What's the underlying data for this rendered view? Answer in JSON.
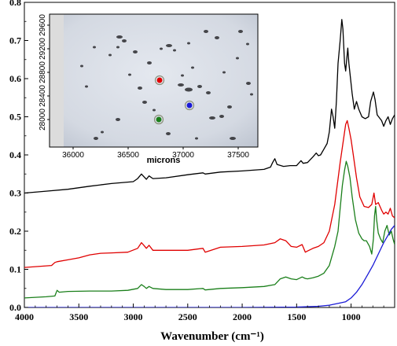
{
  "chart_data": [
    {
      "type": "line",
      "xlabel": "Wavenumber (cm⁻¹)",
      "xlim": [
        4000,
        600
      ],
      "ylim": [
        0.0,
        0.8
      ],
      "x_ticks": [
        4000,
        3500,
        3000,
        2500,
        2000,
        1500,
        1000
      ],
      "x_tick_labels": [
        "4000",
        "3500",
        "3000",
        "2500",
        "2000",
        "1500",
        "1000"
      ],
      "y_ticks": [
        0.0,
        0.1,
        0.2,
        0.3,
        0.4,
        0.5,
        0.6,
        0.7,
        0.8
      ],
      "y_tick_labels": [
        "0.0",
        "0.1",
        "0.2",
        "0.3",
        "0.4",
        "0.5",
        "0.6",
        "0.7",
        "0.8"
      ],
      "grid": false,
      "series": [
        {
          "color": "#000000",
          "points": [
            [
              4000,
              0.3
            ],
            [
              3800,
              0.305
            ],
            [
              3600,
              0.31
            ],
            [
              3400,
              0.318
            ],
            [
              3200,
              0.325
            ],
            [
              3000,
              0.33
            ],
            [
              2960,
              0.338
            ],
            [
              2925,
              0.35
            ],
            [
              2900,
              0.342
            ],
            [
              2880,
              0.336
            ],
            [
              2855,
              0.345
            ],
            [
              2820,
              0.338
            ],
            [
              2700,
              0.34
            ],
            [
              2500,
              0.348
            ],
            [
              2360,
              0.353
            ],
            [
              2340,
              0.35
            ],
            [
              2200,
              0.355
            ],
            [
              2000,
              0.358
            ],
            [
              1800,
              0.362
            ],
            [
              1740,
              0.368
            ],
            [
              1720,
              0.38
            ],
            [
              1700,
              0.39
            ],
            [
              1680,
              0.375
            ],
            [
              1620,
              0.37
            ],
            [
              1560,
              0.372
            ],
            [
              1500,
              0.372
            ],
            [
              1460,
              0.385
            ],
            [
              1440,
              0.378
            ],
            [
              1400,
              0.38
            ],
            [
              1350,
              0.395
            ],
            [
              1320,
              0.405
            ],
            [
              1300,
              0.398
            ],
            [
              1280,
              0.4
            ],
            [
              1250,
              0.415
            ],
            [
              1220,
              0.43
            ],
            [
              1200,
              0.46
            ],
            [
              1180,
              0.52
            ],
            [
              1165,
              0.5
            ],
            [
              1150,
              0.47
            ],
            [
              1135,
              0.54
            ],
            [
              1120,
              0.64
            ],
            [
              1100,
              0.7
            ],
            [
              1085,
              0.755
            ],
            [
              1075,
              0.73
            ],
            [
              1060,
              0.64
            ],
            [
              1050,
              0.62
            ],
            [
              1040,
              0.65
            ],
            [
              1030,
              0.68
            ],
            [
              1020,
              0.64
            ],
            [
              1005,
              0.6
            ],
            [
              990,
              0.56
            ],
            [
              970,
              0.52
            ],
            [
              950,
              0.54
            ],
            [
              930,
              0.52
            ],
            [
              900,
              0.5
            ],
            [
              870,
              0.495
            ],
            [
              840,
              0.5
            ],
            [
              820,
              0.54
            ],
            [
              795,
              0.565
            ],
            [
              780,
              0.545
            ],
            [
              760,
              0.505
            ],
            [
              720,
              0.49
            ],
            [
              700,
              0.475
            ],
            [
              680,
              0.49
            ],
            [
              660,
              0.5
            ],
            [
              640,
              0.48
            ],
            [
              620,
              0.495
            ],
            [
              600,
              0.505
            ]
          ]
        },
        {
          "color": "#e00000",
          "points": [
            [
              4000,
              0.105
            ],
            [
              3750,
              0.11
            ],
            [
              3720,
              0.118
            ],
            [
              3700,
              0.12
            ],
            [
              3600,
              0.125
            ],
            [
              3500,
              0.13
            ],
            [
              3400,
              0.138
            ],
            [
              3300,
              0.142
            ],
            [
              3200,
              0.143
            ],
            [
              3050,
              0.145
            ],
            [
              2960,
              0.155
            ],
            [
              2925,
              0.17
            ],
            [
              2900,
              0.162
            ],
            [
              2880,
              0.155
            ],
            [
              2855,
              0.163
            ],
            [
              2820,
              0.15
            ],
            [
              2700,
              0.15
            ],
            [
              2500,
              0.15
            ],
            [
              2360,
              0.155
            ],
            [
              2340,
              0.145
            ],
            [
              2200,
              0.158
            ],
            [
              2000,
              0.16
            ],
            [
              1800,
              0.164
            ],
            [
              1700,
              0.17
            ],
            [
              1650,
              0.18
            ],
            [
              1600,
              0.175
            ],
            [
              1550,
              0.16
            ],
            [
              1500,
              0.158
            ],
            [
              1450,
              0.165
            ],
            [
              1420,
              0.145
            ],
            [
              1400,
              0.148
            ],
            [
              1350,
              0.155
            ],
            [
              1300,
              0.16
            ],
            [
              1250,
              0.17
            ],
            [
              1200,
              0.2
            ],
            [
              1150,
              0.27
            ],
            [
              1100,
              0.38
            ],
            [
              1070,
              0.44
            ],
            [
              1050,
              0.48
            ],
            [
              1035,
              0.49
            ],
            [
              1020,
              0.47
            ],
            [
              1000,
              0.44
            ],
            [
              980,
              0.4
            ],
            [
              950,
              0.34
            ],
            [
              920,
              0.29
            ],
            [
              880,
              0.265
            ],
            [
              840,
              0.262
            ],
            [
              810,
              0.27
            ],
            [
              790,
              0.3
            ],
            [
              775,
              0.27
            ],
            [
              750,
              0.275
            ],
            [
              720,
              0.255
            ],
            [
              700,
              0.245
            ],
            [
              680,
              0.25
            ],
            [
              660,
              0.245
            ],
            [
              640,
              0.26
            ],
            [
              620,
              0.24
            ],
            [
              600,
              0.235
            ]
          ]
        },
        {
          "color": "#1a7f1a",
          "points": [
            [
              4000,
              0.025
            ],
            [
              3800,
              0.028
            ],
            [
              3720,
              0.03
            ],
            [
              3700,
              0.045
            ],
            [
              3680,
              0.04
            ],
            [
              3600,
              0.042
            ],
            [
              3400,
              0.043
            ],
            [
              3200,
              0.043
            ],
            [
              3050,
              0.045
            ],
            [
              2960,
              0.05
            ],
            [
              2925,
              0.06
            ],
            [
              2900,
              0.055
            ],
            [
              2880,
              0.05
            ],
            [
              2855,
              0.055
            ],
            [
              2820,
              0.05
            ],
            [
              2700,
              0.047
            ],
            [
              2500,
              0.047
            ],
            [
              2360,
              0.05
            ],
            [
              2340,
              0.046
            ],
            [
              2200,
              0.05
            ],
            [
              2000,
              0.052
            ],
            [
              1800,
              0.055
            ],
            [
              1700,
              0.06
            ],
            [
              1650,
              0.075
            ],
            [
              1600,
              0.08
            ],
            [
              1550,
              0.075
            ],
            [
              1500,
              0.073
            ],
            [
              1450,
              0.08
            ],
            [
              1420,
              0.076
            ],
            [
              1400,
              0.075
            ],
            [
              1350,
              0.078
            ],
            [
              1300,
              0.082
            ],
            [
              1250,
              0.09
            ],
            [
              1200,
              0.11
            ],
            [
              1150,
              0.16
            ],
            [
              1120,
              0.2
            ],
            [
              1100,
              0.26
            ],
            [
              1080,
              0.32
            ],
            [
              1060,
              0.36
            ],
            [
              1045,
              0.383
            ],
            [
              1030,
              0.37
            ],
            [
              1010,
              0.34
            ],
            [
              990,
              0.29
            ],
            [
              960,
              0.23
            ],
            [
              930,
              0.195
            ],
            [
              900,
              0.18
            ],
            [
              880,
              0.175
            ],
            [
              860,
              0.175
            ],
            [
              830,
              0.16
            ],
            [
              810,
              0.14
            ],
            [
              795,
              0.18
            ],
            [
              785,
              0.24
            ],
            [
              775,
              0.265
            ],
            [
              765,
              0.23
            ],
            [
              750,
              0.195
            ],
            [
              730,
              0.18
            ],
            [
              710,
              0.17
            ],
            [
              690,
              0.2
            ],
            [
              670,
              0.215
            ],
            [
              650,
              0.19
            ],
            [
              630,
              0.2
            ],
            [
              615,
              0.18
            ],
            [
              600,
              0.165
            ]
          ]
        },
        {
          "color": "#1a1ad6",
          "points": [
            [
              4000,
              0.0
            ],
            [
              3500,
              0.0
            ],
            [
              3000,
              0.0
            ],
            [
              2500,
              0.0
            ],
            [
              2000,
              0.0
            ],
            [
              1500,
              0.001
            ],
            [
              1300,
              0.003
            ],
            [
              1200,
              0.006
            ],
            [
              1100,
              0.012
            ],
            [
              1050,
              0.015
            ],
            [
              1000,
              0.025
            ],
            [
              950,
              0.04
            ],
            [
              900,
              0.06
            ],
            [
              850,
              0.085
            ],
            [
              800,
              0.11
            ],
            [
              750,
              0.14
            ],
            [
              700,
              0.17
            ],
            [
              660,
              0.19
            ],
            [
              630,
              0.205
            ],
            [
              600,
              0.215
            ]
          ]
        }
      ]
    },
    {
      "type": "image",
      "xlabel": "microns",
      "x_ticks": [
        36000,
        36500,
        37000,
        37500
      ],
      "x_tick_labels": [
        "36000",
        "36500",
        "37000",
        "37500"
      ],
      "y_ticks": [
        28000,
        28400,
        28800,
        29200,
        29600
      ],
      "y_tick_labels": [
        "28000",
        "28400",
        "28800",
        "29200",
        "29600"
      ],
      "markers": [
        {
          "color": "#e00000"
        },
        {
          "color": "#1a7f1a"
        },
        {
          "color": "#1a1ad6"
        }
      ]
    }
  ]
}
